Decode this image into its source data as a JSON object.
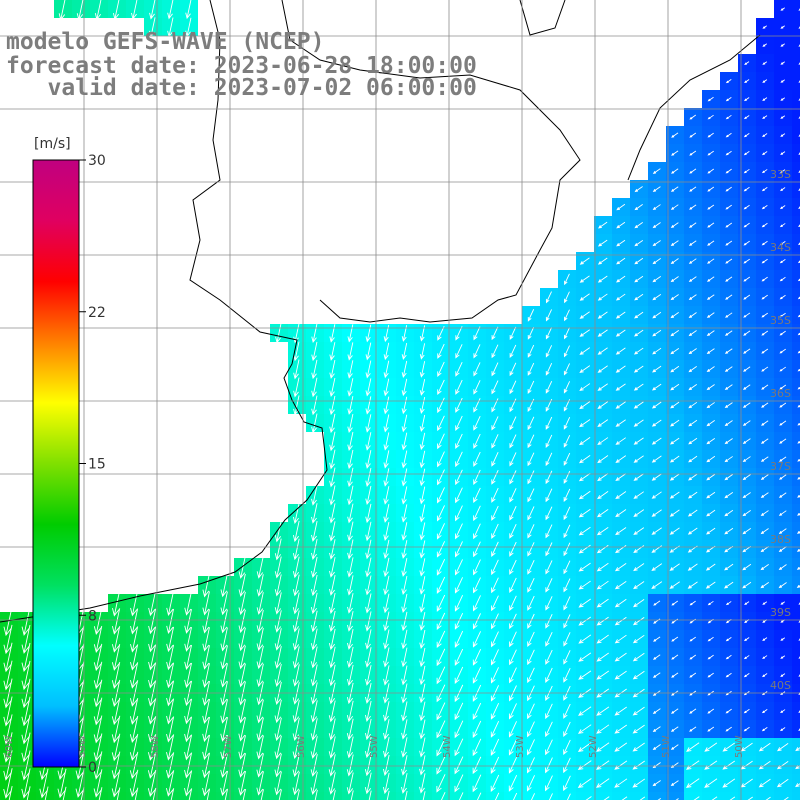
{
  "title": {
    "line1": "modelo GEFS-WAVE (NCEP)",
    "line2": "forecast date: 2023-06-28 18:00:00",
    "line3": "   valid date: 2023-07-02 06:00:00"
  },
  "colorbar": {
    "unit": "[m/s]",
    "min": 0,
    "max": 30,
    "ticks": [
      {
        "value": 30,
        "label": "30"
      },
      {
        "value": 22.5,
        "label": "22"
      },
      {
        "value": 15,
        "label": "15"
      },
      {
        "value": 7.5,
        "label": "8"
      },
      {
        "value": 0,
        "label": "0"
      }
    ],
    "colors": [
      "#0000ff",
      "#00bfff",
      "#00ffff",
      "#00e060",
      "#00cc00",
      "#80e000",
      "#ffff00",
      "#ff8000",
      "#ff0000",
      "#e00060",
      "#c00080"
    ]
  },
  "map": {
    "latitude_labels": [
      "33S",
      "34S",
      "35S",
      "36S",
      "37S",
      "38S",
      "39S",
      "40S"
    ],
    "longitude_labels": [
      "60W",
      "59W",
      "58W",
      "57W",
      "56W",
      "55W",
      "54W",
      "53W",
      "52W",
      "51W",
      "50W"
    ],
    "land_color": "#ffffff",
    "coastline_color": "#000000",
    "grid_color": "#8c8c8c",
    "arrow_color": "#ffffff"
  }
}
